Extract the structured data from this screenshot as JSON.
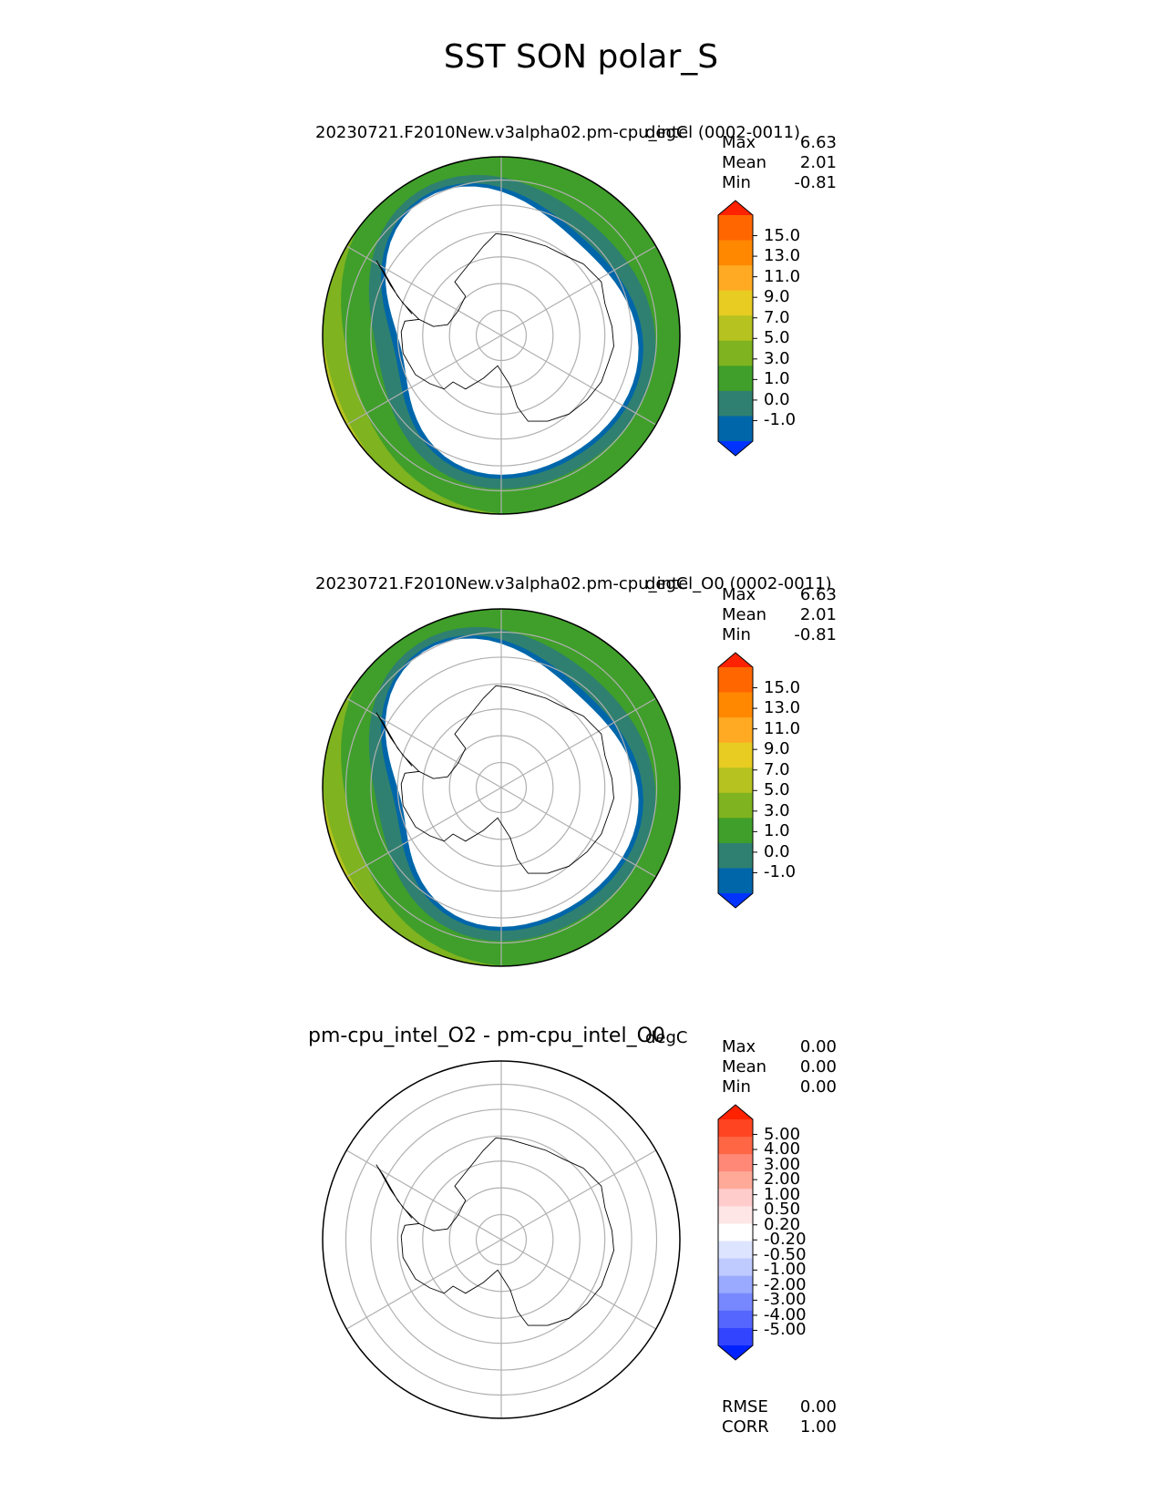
{
  "figure": {
    "title": "SST SON polar_S"
  },
  "panels": [
    {
      "title": "20230721.F2010New.v3alpha02.pm-cpu_intel (0002-0011)",
      "units": "degC",
      "stats": [
        {
          "label": "Max",
          "value": "6.63"
        },
        {
          "label": "Mean",
          "value": "2.01"
        },
        {
          "label": "Min",
          "value": "-0.81"
        }
      ],
      "colorbar": {
        "ticks": [
          "15.0",
          "13.0",
          "11.0",
          "9.0",
          "7.0",
          "5.0",
          "3.0",
          "1.0",
          "0.0",
          "-1.0"
        ],
        "colors": [
          "#ff2200",
          "#ff6600",
          "#ff8800",
          "#ffaa22",
          "#e8cc22",
          "#b5c21f",
          "#7fb31f",
          "#3f9f2a",
          "#2f8070",
          "#0066aa",
          "#0033ff"
        ]
      },
      "field": "model_sst"
    },
    {
      "title": "20230721.F2010New.v3alpha02.pm-cpu_intel_O0 (0002-0011)",
      "units": "degC",
      "stats": [
        {
          "label": "Max",
          "value": "6.63"
        },
        {
          "label": "Mean",
          "value": "2.01"
        },
        {
          "label": "Min",
          "value": "-0.81"
        }
      ],
      "colorbar": {
        "ticks": [
          "15.0",
          "13.0",
          "11.0",
          "9.0",
          "7.0",
          "5.0",
          "3.0",
          "1.0",
          "0.0",
          "-1.0"
        ],
        "colors": [
          "#ff2200",
          "#ff6600",
          "#ff8800",
          "#ffaa22",
          "#e8cc22",
          "#b5c21f",
          "#7fb31f",
          "#3f9f2a",
          "#2f8070",
          "#0066aa",
          "#0033ff"
        ]
      },
      "field": "model_sst"
    },
    {
      "title": "pm-cpu_intel_O2 - pm-cpu_intel_O0",
      "units": "degC",
      "stats": [
        {
          "label": "Max",
          "value": "0.00"
        },
        {
          "label": "Mean",
          "value": "0.00"
        },
        {
          "label": "Min",
          "value": "0.00"
        }
      ],
      "colorbar": {
        "ticks": [
          "5.00",
          "4.00",
          "3.00",
          "2.00",
          "1.00",
          "0.50",
          "0.20",
          "-0.20",
          "-0.50",
          "-1.00",
          "-2.00",
          "-3.00",
          "-4.00",
          "-5.00"
        ],
        "colors": [
          "#ff2200",
          "#ff4422",
          "#ff6644",
          "#ff8877",
          "#ffaa99",
          "#ffcccc",
          "#ffe6e6",
          "#ffffff",
          "#dde4ff",
          "#bfcaff",
          "#99aaff",
          "#7788ff",
          "#5566ff",
          "#3344ff",
          "#0022ff"
        ]
      },
      "field": "difference",
      "extra_stats": [
        {
          "label": "RMSE",
          "value": "0.00"
        },
        {
          "label": "CORR",
          "value": "1.00"
        }
      ]
    }
  ],
  "chart_data": [
    {
      "type": "heatmap",
      "title": "20230721.F2010New.v3alpha02.pm-cpu_intel (0002-0011)",
      "projection": "south polar stereographic",
      "units": "degC",
      "stats": {
        "max": 6.63,
        "mean": 2.01,
        "min": -0.81
      },
      "contour_levels": [
        -1.0,
        0.0,
        1.0,
        3.0,
        5.0,
        7.0,
        9.0,
        11.0,
        13.0,
        15.0
      ],
      "extend": "both"
    },
    {
      "type": "heatmap",
      "title": "20230721.F2010New.v3alpha02.pm-cpu_intel_O0 (0002-0011)",
      "projection": "south polar stereographic",
      "units": "degC",
      "stats": {
        "max": 6.63,
        "mean": 2.01,
        "min": -0.81
      },
      "contour_levels": [
        -1.0,
        0.0,
        1.0,
        3.0,
        5.0,
        7.0,
        9.0,
        11.0,
        13.0,
        15.0
      ],
      "extend": "both"
    },
    {
      "type": "heatmap",
      "title": "pm-cpu_intel_O2 - pm-cpu_intel_O0",
      "projection": "south polar stereographic",
      "units": "degC",
      "stats": {
        "max": 0.0,
        "mean": 0.0,
        "min": 0.0,
        "rmse": 0.0,
        "corr": 1.0
      },
      "contour_levels": [
        -5.0,
        -4.0,
        -3.0,
        -2.0,
        -1.0,
        -0.5,
        -0.2,
        0.2,
        0.5,
        1.0,
        2.0,
        3.0,
        4.0,
        5.0
      ],
      "extend": "both"
    }
  ]
}
